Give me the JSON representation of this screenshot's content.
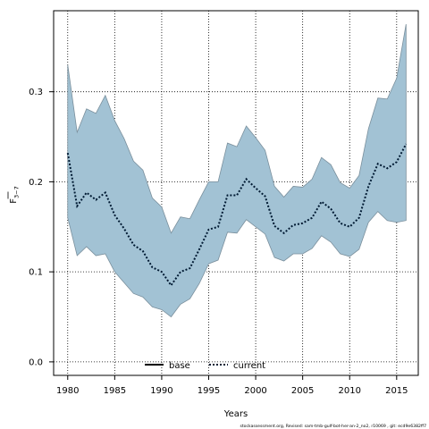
{
  "chart_data": {
    "type": "area",
    "xlabel": "Years",
    "ylabel_main": "F",
    "ylabel_sub": "3−7",
    "xlim": [
      1978.5,
      2017.3
    ],
    "ylim": [
      -0.015,
      0.39
    ],
    "x_ticks": [
      1980,
      1985,
      1990,
      1995,
      2000,
      2005,
      2010,
      2015
    ],
    "y_ticks": [
      0.0,
      0.1,
      0.2,
      0.3
    ],
    "y_tick_labels": [
      "0.0",
      "0.1",
      "0.2",
      "0.3"
    ],
    "grid": true,
    "grid_style": "dotted",
    "years": [
      1980,
      1981,
      1982,
      1983,
      1984,
      1985,
      1986,
      1987,
      1988,
      1989,
      1990,
      1991,
      1992,
      1993,
      1994,
      1995,
      1996,
      1997,
      1998,
      1999,
      2000,
      2001,
      2002,
      2003,
      2004,
      2005,
      2006,
      2007,
      2008,
      2009,
      2010,
      2011,
      2012,
      2013,
      2014,
      2015,
      2016
    ],
    "current": [
      0.232,
      0.173,
      0.188,
      0.18,
      0.188,
      0.163,
      0.148,
      0.13,
      0.123,
      0.105,
      0.1,
      0.085,
      0.1,
      0.104,
      0.125,
      0.147,
      0.15,
      0.185,
      0.185,
      0.203,
      0.193,
      0.184,
      0.151,
      0.143,
      0.152,
      0.154,
      0.16,
      0.178,
      0.17,
      0.154,
      0.15,
      0.16,
      0.195,
      0.22,
      0.215,
      0.222,
      0.242
    ],
    "lower": [
      0.16,
      0.118,
      0.128,
      0.118,
      0.12,
      0.1,
      0.088,
      0.076,
      0.072,
      0.061,
      0.058,
      0.05,
      0.064,
      0.07,
      0.087,
      0.109,
      0.113,
      0.144,
      0.143,
      0.158,
      0.15,
      0.142,
      0.116,
      0.112,
      0.12,
      0.12,
      0.126,
      0.14,
      0.133,
      0.12,
      0.117,
      0.125,
      0.155,
      0.167,
      0.157,
      0.155,
      0.157
    ],
    "upper": [
      0.33,
      0.255,
      0.281,
      0.276,
      0.296,
      0.268,
      0.248,
      0.223,
      0.213,
      0.182,
      0.172,
      0.143,
      0.161,
      0.159,
      0.18,
      0.2,
      0.2,
      0.243,
      0.239,
      0.262,
      0.249,
      0.235,
      0.195,
      0.183,
      0.195,
      0.194,
      0.203,
      0.227,
      0.219,
      0.199,
      0.193,
      0.207,
      0.259,
      0.293,
      0.292,
      0.315,
      0.375
    ],
    "band_color": "#a2c2d4",
    "band_edge_color": "#7a8f9c",
    "line_color": "#001a33",
    "legend": {
      "position": "bottom-center",
      "entries": [
        {
          "label": "base",
          "style": "solid",
          "color": "#000000"
        },
        {
          "label": "current",
          "style": "dotted",
          "color": "#001a33"
        }
      ]
    },
    "footer": "stockassessment.org, Revised: sam-tmb-gulf-bot-her-an-2_no2, r10069 , git: ecd9e6382ff7"
  }
}
